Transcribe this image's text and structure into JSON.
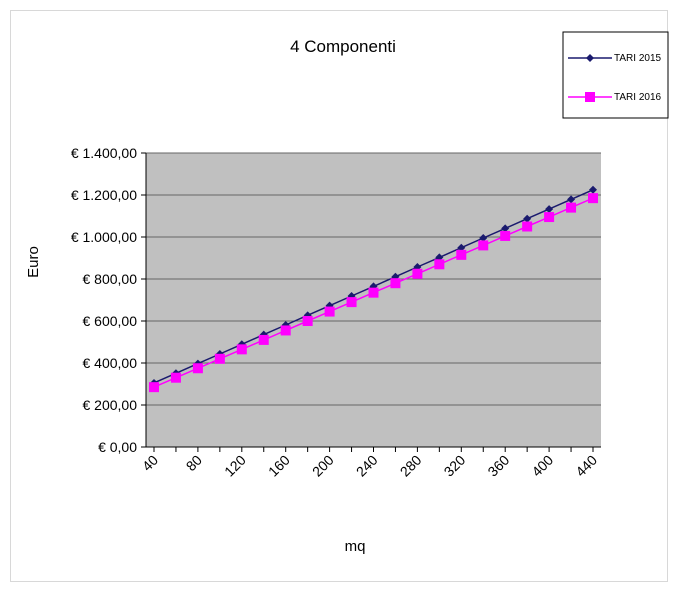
{
  "chart_data": {
    "type": "line",
    "title": "4 Componenti",
    "xlabel": "mq",
    "ylabel": "Euro",
    "x": [
      40,
      60,
      80,
      100,
      120,
      140,
      160,
      180,
      200,
      220,
      240,
      260,
      280,
      300,
      320,
      340,
      360,
      380,
      400,
      420,
      440
    ],
    "x_tick_labels": [
      "40",
      "80",
      "120",
      "160",
      "200",
      "240",
      "280",
      "320",
      "360",
      "400",
      "440"
    ],
    "x_tick_values": [
      40,
      80,
      120,
      160,
      200,
      240,
      280,
      320,
      360,
      400,
      440
    ],
    "y_tick_labels": [
      "€ 0,00",
      "€ 200,00",
      "€ 400,00",
      "€ 600,00",
      "€ 800,00",
      "€ 1.000,00",
      "€ 1.200,00",
      "€ 1.400,00"
    ],
    "y_tick_values": [
      0,
      200,
      400,
      600,
      800,
      1000,
      1200,
      1400
    ],
    "ylim": [
      0,
      1400
    ],
    "xlim": [
      40,
      440
    ],
    "grid": true,
    "legend_position": "top-right",
    "plot_background": "#c0c0c0",
    "series": [
      {
        "name": "TARI 2015",
        "color": "#1a1a6e",
        "marker": "diamond",
        "values": [
          305,
          351,
          397,
          443,
          489,
          535,
          581,
          627,
          673,
          719,
          765,
          811,
          857,
          903,
          949,
          995,
          1041,
          1087,
          1133,
          1179,
          1225
        ]
      },
      {
        "name": "TARI 2016",
        "color": "#ff00ff",
        "marker": "square",
        "values": [
          285,
          330,
          375,
          420,
          465,
          510,
          555,
          600,
          645,
          690,
          735,
          780,
          825,
          870,
          915,
          960,
          1005,
          1050,
          1095,
          1140,
          1185
        ]
      }
    ]
  }
}
